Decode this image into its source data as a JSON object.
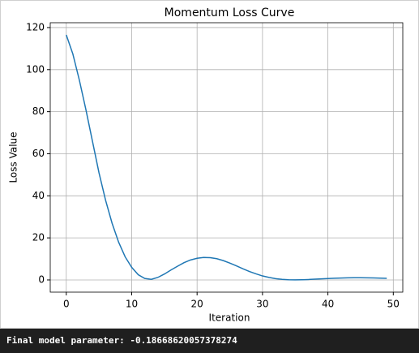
{
  "chart_data": {
    "type": "line",
    "title": "Momentum Loss Curve",
    "x_label": "Iteration",
    "y_label": "Loss Value",
    "x": [
      0,
      1,
      2,
      3,
      4,
      5,
      6,
      7,
      8,
      9,
      10,
      11,
      12,
      13,
      14,
      15,
      16,
      17,
      18,
      19,
      20,
      21,
      22,
      23,
      24,
      25,
      26,
      27,
      28,
      29,
      30,
      31,
      32,
      33,
      34,
      35,
      36,
      37,
      38,
      39,
      40,
      41,
      42,
      43,
      44,
      45,
      46,
      47,
      48,
      49
    ],
    "series": [
      {
        "name": "loss",
        "color": "#1f77b4",
        "values": [
          116.5,
          107.5,
          95,
          81,
          66,
          51,
          38,
          27,
          18,
          11,
          6,
          2.5,
          0.7,
          0.3,
          1.2,
          2.8,
          4.7,
          6.5,
          8.2,
          9.5,
          10.3,
          10.7,
          10.6,
          10.1,
          9.2,
          8.0,
          6.7,
          5.3,
          4.0,
          2.9,
          1.9,
          1.2,
          0.6,
          0.3,
          0.1,
          0.05,
          0.1,
          0.2,
          0.35,
          0.5,
          0.65,
          0.8,
          0.9,
          1.0,
          1.05,
          1.05,
          1.0,
          0.95,
          0.85,
          0.75
        ]
      }
    ],
    "xlim": [
      -2.45,
      51.45
    ],
    "xticks": [
      0,
      10,
      20,
      30,
      40,
      50
    ],
    "ylim": [
      -5.8,
      122.3
    ],
    "yticks": [
      0,
      20,
      40,
      60,
      80,
      100,
      120
    ],
    "grid": true
  },
  "console": {
    "text": "Final model parameter: -0.18668620057378274"
  }
}
